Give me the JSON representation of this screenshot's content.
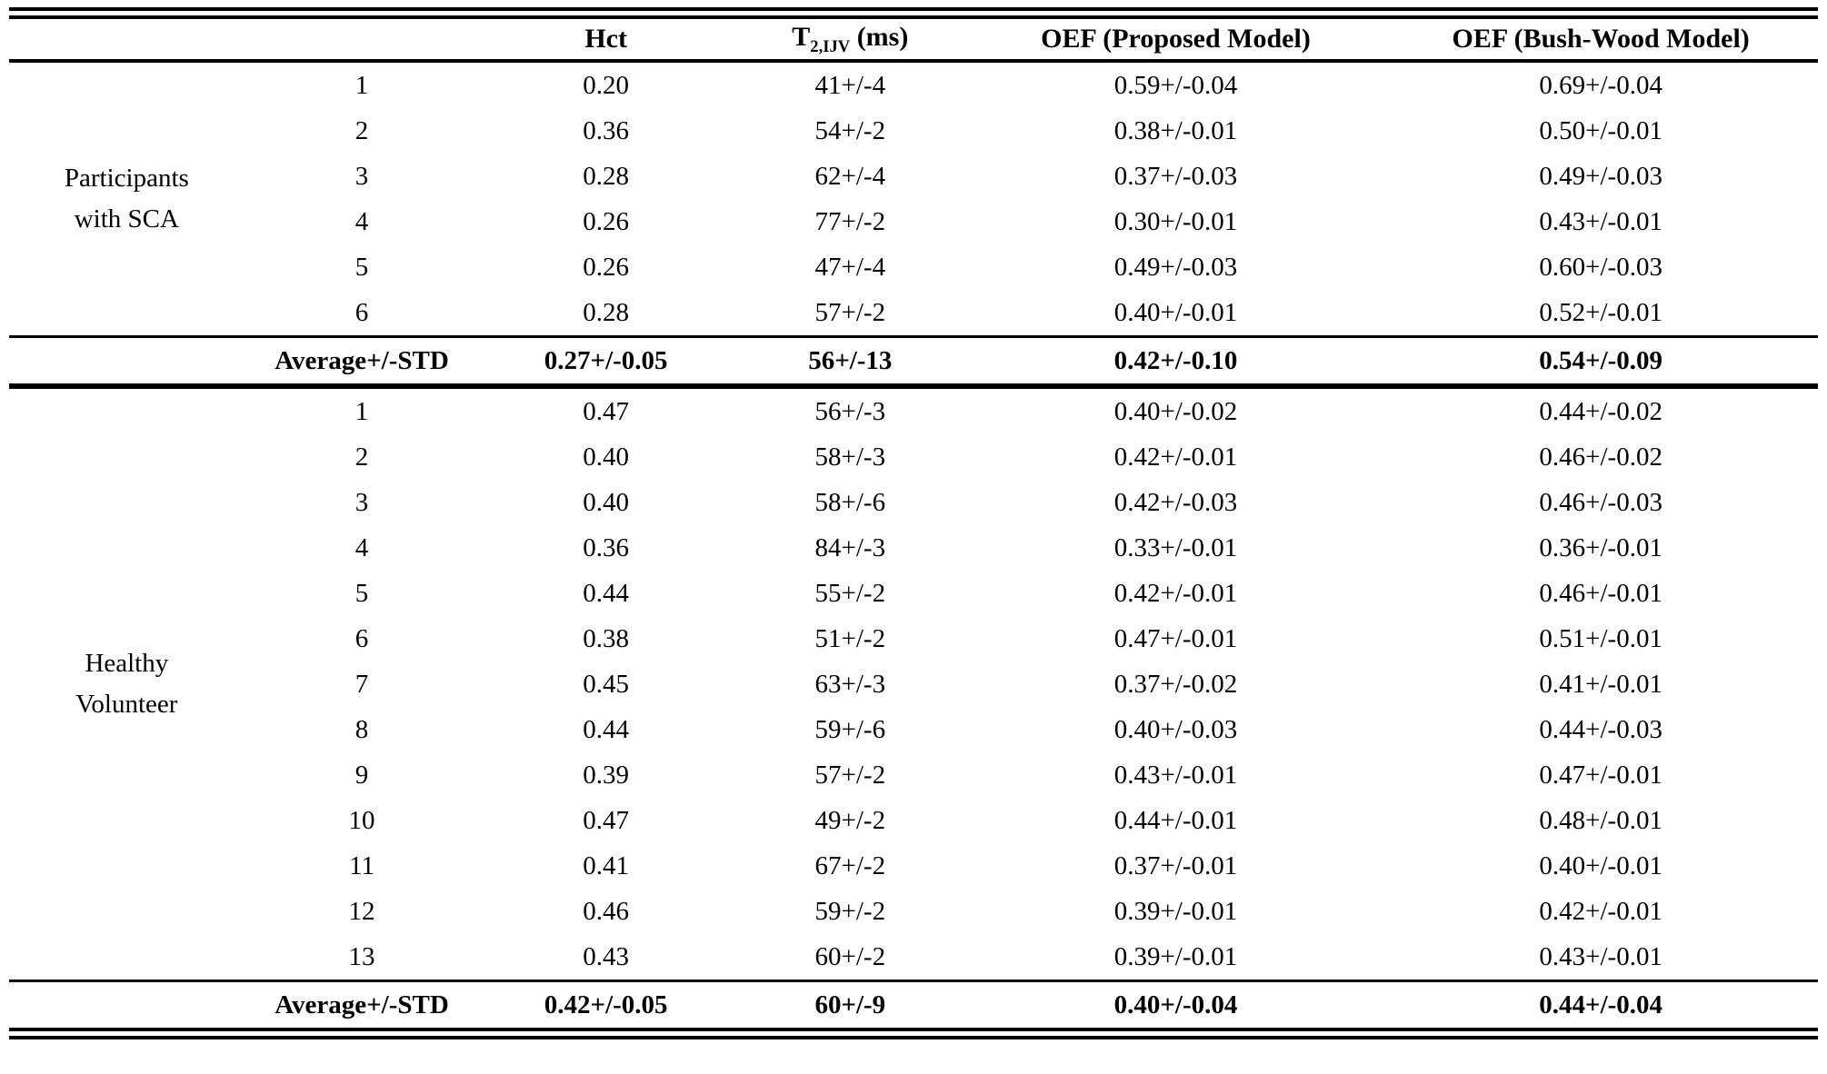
{
  "table": {
    "columns": {
      "group": "",
      "subject": "",
      "hct": "Hct",
      "t2": {
        "pre": "T",
        "sub": "2,IJV",
        "post": " (ms)"
      },
      "oef_proposed": "OEF (Proposed Model)",
      "oef_bushwood": "OEF (Bush-Wood Model)"
    },
    "groups": [
      {
        "label_lines": [
          "Participants",
          "with SCA"
        ],
        "rows": [
          {
            "id": "1",
            "hct": "0.20",
            "t2": "41+/-4",
            "oef_proposed": "0.59+/-0.04",
            "oef_bushwood": "0.69+/-0.04"
          },
          {
            "id": "2",
            "hct": "0.36",
            "t2": "54+/-2",
            "oef_proposed": "0.38+/-0.01",
            "oef_bushwood": "0.50+/-0.01"
          },
          {
            "id": "3",
            "hct": "0.28",
            "t2": "62+/-4",
            "oef_proposed": "0.37+/-0.03",
            "oef_bushwood": "0.49+/-0.03"
          },
          {
            "id": "4",
            "hct": "0.26",
            "t2": "77+/-2",
            "oef_proposed": "0.30+/-0.01",
            "oef_bushwood": "0.43+/-0.01"
          },
          {
            "id": "5",
            "hct": "0.26",
            "t2": "47+/-4",
            "oef_proposed": "0.49+/-0.03",
            "oef_bushwood": "0.60+/-0.03"
          },
          {
            "id": "6",
            "hct": "0.28",
            "t2": "57+/-2",
            "oef_proposed": "0.40+/-0.01",
            "oef_bushwood": "0.52+/-0.01"
          }
        ],
        "average": {
          "label": "Average+/-STD",
          "hct": "0.27+/-0.05",
          "t2": "56+/-13",
          "oef_proposed": "0.42+/-0.10",
          "oef_bushwood": "0.54+/-0.09"
        }
      },
      {
        "label_lines": [
          "Healthy",
          "Volunteer"
        ],
        "rows": [
          {
            "id": "1",
            "hct": "0.47",
            "t2": "56+/-3",
            "oef_proposed": "0.40+/-0.02",
            "oef_bushwood": "0.44+/-0.02"
          },
          {
            "id": "2",
            "hct": "0.40",
            "t2": "58+/-3",
            "oef_proposed": "0.42+/-0.01",
            "oef_bushwood": "0.46+/-0.02"
          },
          {
            "id": "3",
            "hct": "0.40",
            "t2": "58+/-6",
            "oef_proposed": "0.42+/-0.03",
            "oef_bushwood": "0.46+/-0.03"
          },
          {
            "id": "4",
            "hct": "0.36",
            "t2": "84+/-3",
            "oef_proposed": "0.33+/-0.01",
            "oef_bushwood": "0.36+/-0.01"
          },
          {
            "id": "5",
            "hct": "0.44",
            "t2": "55+/-2",
            "oef_proposed": "0.42+/-0.01",
            "oef_bushwood": "0.46+/-0.01"
          },
          {
            "id": "6",
            "hct": "0.38",
            "t2": "51+/-2",
            "oef_proposed": "0.47+/-0.01",
            "oef_bushwood": "0.51+/-0.01"
          },
          {
            "id": "7",
            "hct": "0.45",
            "t2": "63+/-3",
            "oef_proposed": "0.37+/-0.02",
            "oef_bushwood": "0.41+/-0.01"
          },
          {
            "id": "8",
            "hct": "0.44",
            "t2": "59+/-6",
            "oef_proposed": "0.40+/-0.03",
            "oef_bushwood": "0.44+/-0.03"
          },
          {
            "id": "9",
            "hct": "0.39",
            "t2": "57+/-2",
            "oef_proposed": "0.43+/-0.01",
            "oef_bushwood": "0.47+/-0.01"
          },
          {
            "id": "10",
            "hct": "0.47",
            "t2": "49+/-2",
            "oef_proposed": "0.44+/-0.01",
            "oef_bushwood": "0.48+/-0.01"
          },
          {
            "id": "11",
            "hct": "0.41",
            "t2": "67+/-2",
            "oef_proposed": "0.37+/-0.01",
            "oef_bushwood": "0.40+/-0.01"
          },
          {
            "id": "12",
            "hct": "0.46",
            "t2": "59+/-2",
            "oef_proposed": "0.39+/-0.01",
            "oef_bushwood": "0.42+/-0.01"
          },
          {
            "id": "13",
            "hct": "0.43",
            "t2": "60+/-2",
            "oef_proposed": "0.39+/-0.01",
            "oef_bushwood": "0.43+/-0.01"
          }
        ],
        "average": {
          "label": "Average+/-STD",
          "hct": "0.42+/-0.05",
          "t2": "60+/-9",
          "oef_proposed": "0.40+/-0.04",
          "oef_bushwood": "0.44+/-0.04"
        }
      }
    ]
  }
}
